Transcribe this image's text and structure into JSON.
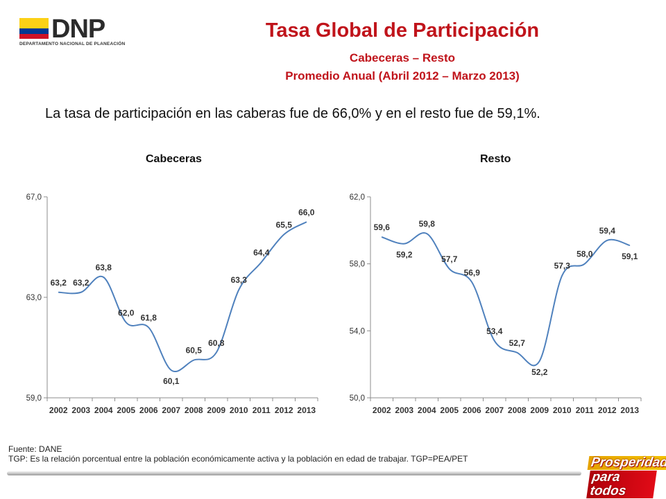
{
  "header": {
    "logo_text": "DNP",
    "logo_subtitle": "DEPARTAMENTO NACIONAL DE PLANEACIÓN",
    "title": "Tasa Global de Participación",
    "subtitle1": "Cabeceras – Resto",
    "subtitle2": "Promedio Anual (Abril 2012 – Marzo 2013)"
  },
  "intro_text": "La tasa de participación en las caberas fue de 66,0% y en el resto fue de 59,1%.",
  "chart_data": [
    {
      "type": "line",
      "title": "Cabeceras",
      "x": [
        "2002",
        "2003",
        "2004",
        "2005",
        "2006",
        "2007",
        "2008",
        "2009",
        "2010",
        "2011",
        "2012",
        "2013"
      ],
      "values": [
        63.2,
        63.2,
        63.8,
        62.0,
        61.8,
        60.1,
        60.5,
        60.8,
        63.3,
        64.4,
        65.5,
        66.0
      ],
      "labels": [
        "63,2",
        "63,2",
        "63,8",
        "62,0",
        "61,8",
        "60,1",
        "60,5",
        "60,8",
        "63,3",
        "64,4",
        "65,5",
        "66,0"
      ],
      "ylim": [
        59.0,
        67.0
      ],
      "yticks": [
        "59,0",
        "63,0",
        "67,0"
      ],
      "grid": false,
      "line_color": "#4f81bd"
    },
    {
      "type": "line",
      "title": "Resto",
      "x": [
        "2002",
        "2003",
        "2004",
        "2005",
        "2006",
        "2007",
        "2008",
        "2009",
        "2010",
        "2011",
        "2012",
        "2013"
      ],
      "values": [
        59.6,
        59.2,
        59.8,
        57.7,
        56.9,
        53.4,
        52.7,
        52.2,
        57.3,
        58.0,
        59.4,
        59.1
      ],
      "labels": [
        "59,6",
        "59,2",
        "59,8",
        "57,7",
        "56,9",
        "53,4",
        "52,7",
        "52,2",
        "57,3",
        "58,0",
        "59,4",
        "59,1"
      ],
      "ylim": [
        50.0,
        62.0
      ],
      "yticks": [
        "50,0",
        "54,0",
        "58,0",
        "62,0"
      ],
      "grid": false,
      "line_color": "#4f81bd"
    }
  ],
  "footer": {
    "source": "Fuente: DANE",
    "note": "TGP: Es la relación porcentual entre la población económicamente activa y la población  en edad de trabajar. TGP=PEA/PET"
  },
  "brand": {
    "line1": "Prosperidad",
    "line2": "para todos"
  },
  "colors": {
    "title": "#c0141b",
    "series": "#4f81bd",
    "flag_yellow": "#fcd116",
    "flag_blue": "#003893",
    "flag_red": "#ce1126"
  }
}
